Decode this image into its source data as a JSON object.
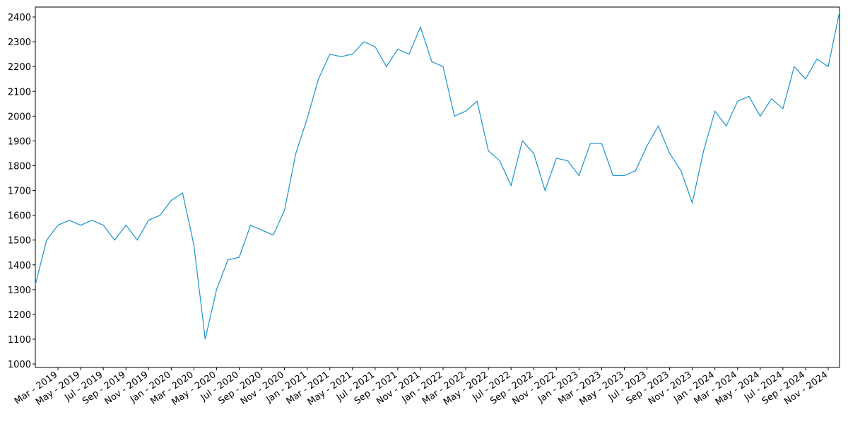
{
  "chart_data": {
    "type": "line",
    "x": [
      "2019-01",
      "2019-02",
      "2019-03",
      "2019-04",
      "2019-05",
      "2019-06",
      "2019-07",
      "2019-08",
      "2019-09",
      "2019-10",
      "2019-11",
      "2019-12",
      "2020-01",
      "2020-02",
      "2020-03",
      "2020-04",
      "2020-05",
      "2020-06",
      "2020-07",
      "2020-08",
      "2020-09",
      "2020-10",
      "2020-11",
      "2020-12",
      "2021-01",
      "2021-02",
      "2021-03",
      "2021-04",
      "2021-05",
      "2021-06",
      "2021-07",
      "2021-08",
      "2021-09",
      "2021-10",
      "2021-11",
      "2021-12",
      "2022-01",
      "2022-02",
      "2022-03",
      "2022-04",
      "2022-05",
      "2022-06",
      "2022-07",
      "2022-08",
      "2022-09",
      "2022-10",
      "2022-11",
      "2022-12",
      "2023-01",
      "2023-02",
      "2023-03",
      "2023-04",
      "2023-05",
      "2023-06",
      "2023-07",
      "2023-08",
      "2023-09",
      "2023-10",
      "2023-11",
      "2023-12",
      "2024-01",
      "2024-02",
      "2024-03",
      "2024-04",
      "2024-05",
      "2024-06",
      "2024-07",
      "2024-08",
      "2024-09",
      "2024-10",
      "2024-11",
      "2024-12"
    ],
    "series": [
      {
        "color": "#1a93d3",
        "values": [
          1320,
          1500,
          1560,
          1580,
          1560,
          1580,
          1560,
          1500,
          1560,
          1500,
          1580,
          1600,
          1660,
          1690,
          1480,
          1100,
          1300,
          1420,
          1430,
          1560,
          1540,
          1520,
          1620,
          1850,
          1990,
          2150,
          2250,
          2240,
          2250,
          2300,
          2280,
          2200,
          2270,
          2250,
          2360,
          2220,
          2200,
          2000,
          2020,
          2060,
          1860,
          1820,
          1720,
          1900,
          1850,
          1700,
          1830,
          1820,
          1760,
          1890,
          1890,
          1760,
          1760,
          1780,
          1880,
          1960,
          1850,
          1780,
          1650,
          1860,
          2020,
          1960,
          2060,
          2080,
          2000,
          2070,
          2030,
          2200,
          2150,
          2230,
          2200,
          2420
        ]
      }
    ],
    "xlim": [
      "2019-01",
      "2024-12"
    ],
    "xticks": [
      {
        "value": "2019-03",
        "label": "Mar - 2019"
      },
      {
        "value": "2019-05",
        "label": "May - 2019"
      },
      {
        "value": "2019-07",
        "label": "Jul - 2019"
      },
      {
        "value": "2019-09",
        "label": "Sep - 2019"
      },
      {
        "value": "2019-11",
        "label": "Nov - 2019"
      },
      {
        "value": "2020-01",
        "label": "Jan - 2020"
      },
      {
        "value": "2020-03",
        "label": "Mar - 2020"
      },
      {
        "value": "2020-05",
        "label": "May - 2020"
      },
      {
        "value": "2020-07",
        "label": "Jul - 2020"
      },
      {
        "value": "2020-09",
        "label": "Sep - 2020"
      },
      {
        "value": "2020-11",
        "label": "Nov - 2020"
      },
      {
        "value": "2021-01",
        "label": "Jan - 2021"
      },
      {
        "value": "2021-03",
        "label": "Mar - 2021"
      },
      {
        "value": "2021-05",
        "label": "May - 2021"
      },
      {
        "value": "2021-07",
        "label": "Jul - 2021"
      },
      {
        "value": "2021-09",
        "label": "Sep - 2021"
      },
      {
        "value": "2021-11",
        "label": "Nov - 2021"
      },
      {
        "value": "2022-01",
        "label": "Jan - 2022"
      },
      {
        "value": "2022-03",
        "label": "Mar - 2022"
      },
      {
        "value": "2022-05",
        "label": "May - 2022"
      },
      {
        "value": "2022-07",
        "label": "Jul - 2022"
      },
      {
        "value": "2022-09",
        "label": "Sep - 2022"
      },
      {
        "value": "2022-11",
        "label": "Nov - 2022"
      },
      {
        "value": "2023-01",
        "label": "Jan - 2023"
      },
      {
        "value": "2023-03",
        "label": "Mar - 2023"
      },
      {
        "value": "2023-05",
        "label": "May - 2023"
      },
      {
        "value": "2023-07",
        "label": "Jul - 2023"
      },
      {
        "value": "2023-09",
        "label": "Sep - 2023"
      },
      {
        "value": "2023-11",
        "label": "Nov - 2023"
      },
      {
        "value": "2024-01",
        "label": "Jan - 2024"
      },
      {
        "value": "2024-03",
        "label": "Mar - 2024"
      },
      {
        "value": "2024-05",
        "label": "May - 2024"
      },
      {
        "value": "2024-07",
        "label": "Jul - 2024"
      },
      {
        "value": "2024-09",
        "label": "Sep - 2024"
      },
      {
        "value": "2024-11",
        "label": "Nov - 2024"
      }
    ],
    "ylim": [
      986,
      2440
    ],
    "yticks": [
      1000,
      1100,
      1200,
      1300,
      1400,
      1500,
      1600,
      1700,
      1800,
      1900,
      2000,
      2100,
      2200,
      2300,
      2400
    ],
    "grid": false
  }
}
